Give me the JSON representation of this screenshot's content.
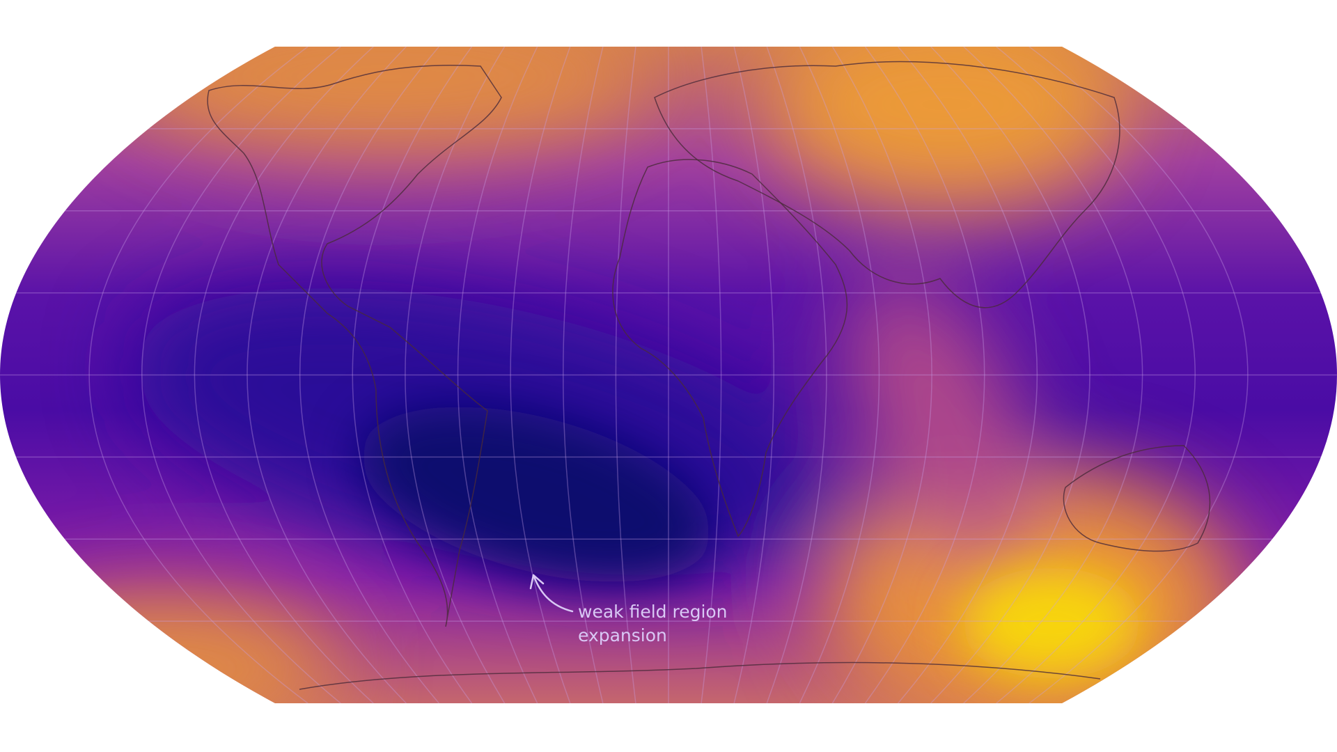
{
  "map": {
    "projection": "robinson",
    "colormap": "plasma",
    "colors": {
      "low": "#0b0a6e",
      "mid": "#6f12b0",
      "high_orange": "#e8913a",
      "max_yellow": "#f7d40c",
      "graticule": "#b98ad8",
      "coastline": "#4a2a3a"
    },
    "annotation": {
      "line1": "weak field region",
      "line2": "expansion",
      "arrow_icon": "curved-arrow-up-left"
    }
  }
}
